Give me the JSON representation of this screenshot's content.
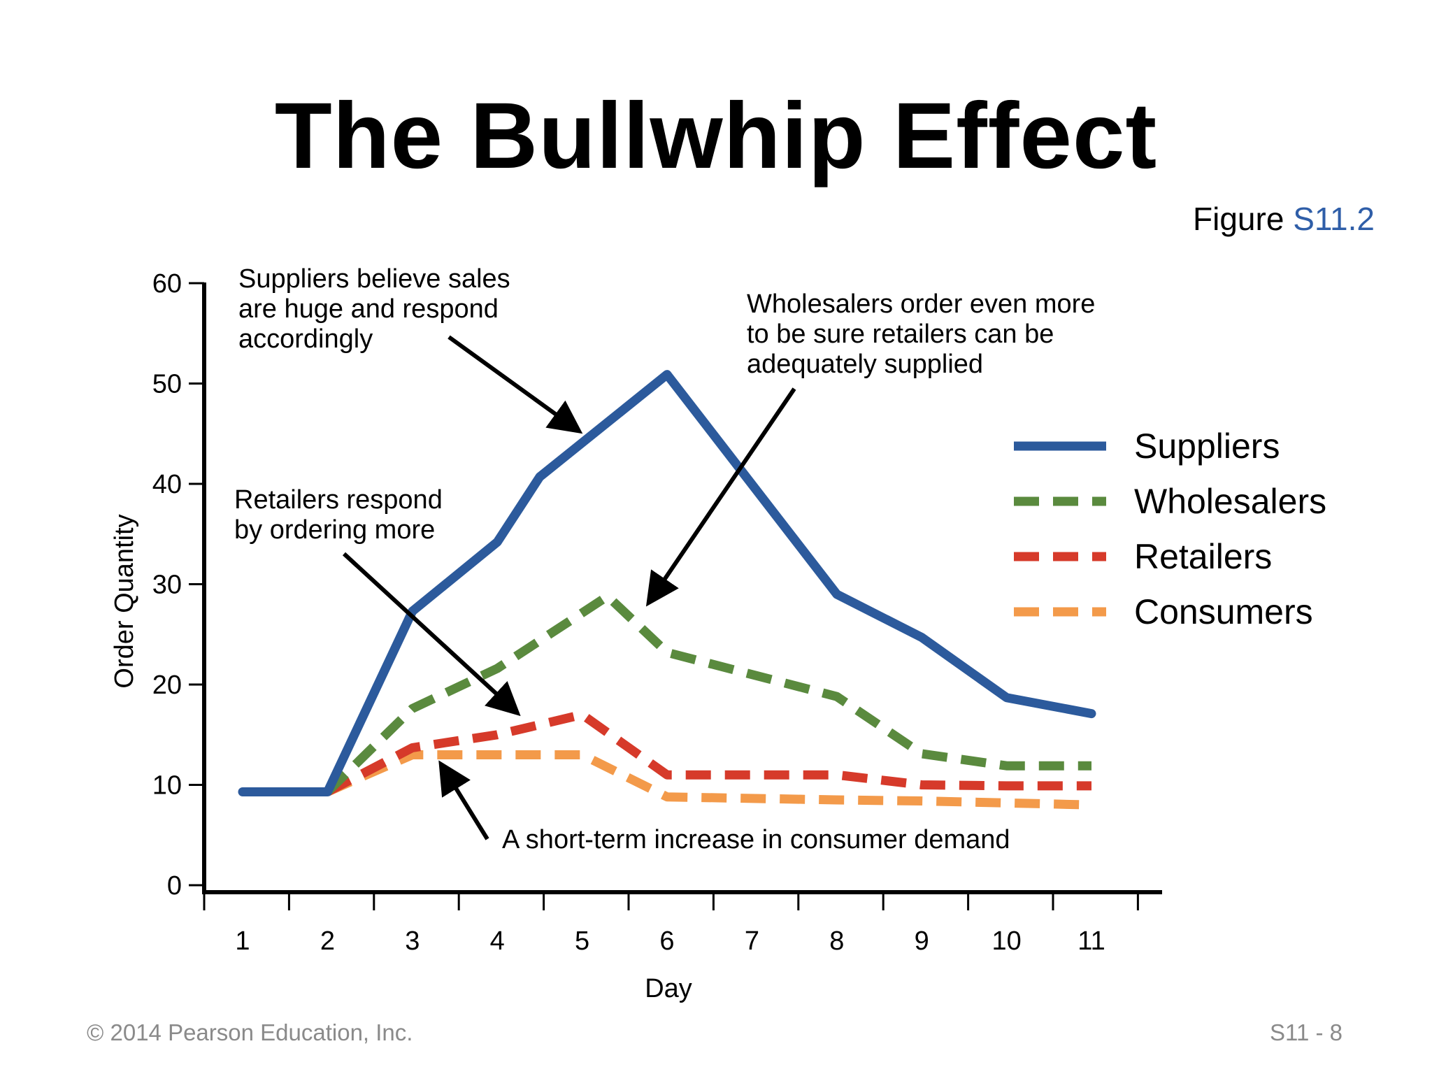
{
  "slide": {
    "title": "The Bullwhip Effect",
    "figure_prefix": "Figure ",
    "figure_number": "S11.2",
    "copyright": "© 2014 Pearson Education, Inc.",
    "page": "S11 - 8"
  },
  "chart_data": {
    "type": "line",
    "xlabel": "Day",
    "ylabel": "Order Quantity",
    "x": [
      1,
      2,
      3,
      4,
      5,
      6,
      7,
      8,
      9,
      10,
      11
    ],
    "xticks": [
      "1",
      "2",
      "3",
      "4",
      "5",
      "6",
      "7",
      "8",
      "9",
      "10",
      "11"
    ],
    "yticks": [
      "0",
      "10",
      "20",
      "30",
      "40",
      "50",
      "60"
    ],
    "ylim": [
      0,
      60
    ],
    "series": [
      {
        "name": "Suppliers",
        "color": "#2c5a9c",
        "style": "solid",
        "points": [
          [
            1,
            9.3
          ],
          [
            2,
            9.3
          ],
          [
            3,
            27.3
          ],
          [
            4,
            34.2
          ],
          [
            4.5,
            40.7
          ],
          [
            6,
            50.9
          ],
          [
            8,
            29
          ],
          [
            9,
            24.7
          ],
          [
            10,
            18.7
          ],
          [
            11,
            17.1
          ]
        ]
      },
      {
        "name": "Wholesalers",
        "color": "#5a8a3e",
        "style": "dashed",
        "points": [
          [
            2,
            9.3
          ],
          [
            3,
            17.6
          ],
          [
            4,
            21.6
          ],
          [
            5.3,
            28.8
          ],
          [
            6,
            23.2
          ],
          [
            8,
            18.8
          ],
          [
            9,
            13.1
          ],
          [
            10,
            11.9
          ],
          [
            11,
            11.9
          ]
        ]
      },
      {
        "name": "Retailers",
        "color": "#d63a2a",
        "style": "dashed",
        "points": [
          [
            2,
            9.3
          ],
          [
            3,
            13.7
          ],
          [
            4,
            15
          ],
          [
            5,
            17
          ],
          [
            6,
            11
          ],
          [
            8,
            11
          ],
          [
            9,
            10
          ],
          [
            10,
            9.9
          ],
          [
            11,
            9.9
          ]
        ]
      },
      {
        "name": "Consumers",
        "color": "#f39a4a",
        "style": "dashed",
        "points": [
          [
            2,
            9.3
          ],
          [
            3,
            13
          ],
          [
            4,
            13
          ],
          [
            5,
            13
          ],
          [
            6,
            8.8
          ],
          [
            8,
            8.5
          ],
          [
            9,
            8.4
          ],
          [
            10,
            8.2
          ],
          [
            11,
            8
          ]
        ]
      }
    ],
    "annotations": [
      {
        "lines": [
          "Suppliers believe sales",
          "are huge and respond",
          "accordingly"
        ]
      },
      {
        "lines": [
          "Wholesalers order even more",
          "to be sure retailers can be",
          "adequately supplied"
        ]
      },
      {
        "lines": [
          "Retailers respond",
          "by ordering more"
        ]
      },
      {
        "lines": [
          "A short-term increase in consumer demand"
        ]
      }
    ],
    "legend_position": "right"
  }
}
